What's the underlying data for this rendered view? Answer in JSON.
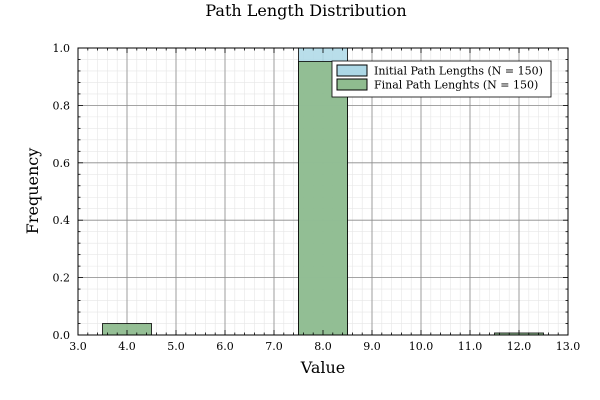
{
  "chart_data": {
    "type": "bar",
    "title": "Path Length Distribution",
    "xlabel": "Value",
    "ylabel": "Frequency",
    "xlim": [
      3.0,
      13.0
    ],
    "ylim": [
      0.0,
      1.0
    ],
    "xticks": [
      "3.0",
      "4.0",
      "5.0",
      "6.0",
      "7.0",
      "8.0",
      "9.0",
      "10.0",
      "11.0",
      "12.0",
      "13.0"
    ],
    "yticks": [
      "0.0",
      "0.2",
      "0.4",
      "0.6",
      "0.8",
      "1.0"
    ],
    "grid": true,
    "legend_position": "top-right",
    "series": [
      {
        "name": "Initial Path Lengths (N = 150)",
        "color": "#add8e6",
        "bins": [
          {
            "x0": 7.5,
            "x1": 8.5,
            "value": 1.0
          }
        ]
      },
      {
        "name": "Final Path Lenghts (N = 150)",
        "color": "#8fbc8f",
        "bins": [
          {
            "x0": 3.5,
            "x1": 4.5,
            "value": 0.04
          },
          {
            "x0": 7.5,
            "x1": 8.5,
            "value": 0.953
          },
          {
            "x0": 11.5,
            "x1": 12.5,
            "value": 0.007
          }
        ]
      }
    ]
  }
}
